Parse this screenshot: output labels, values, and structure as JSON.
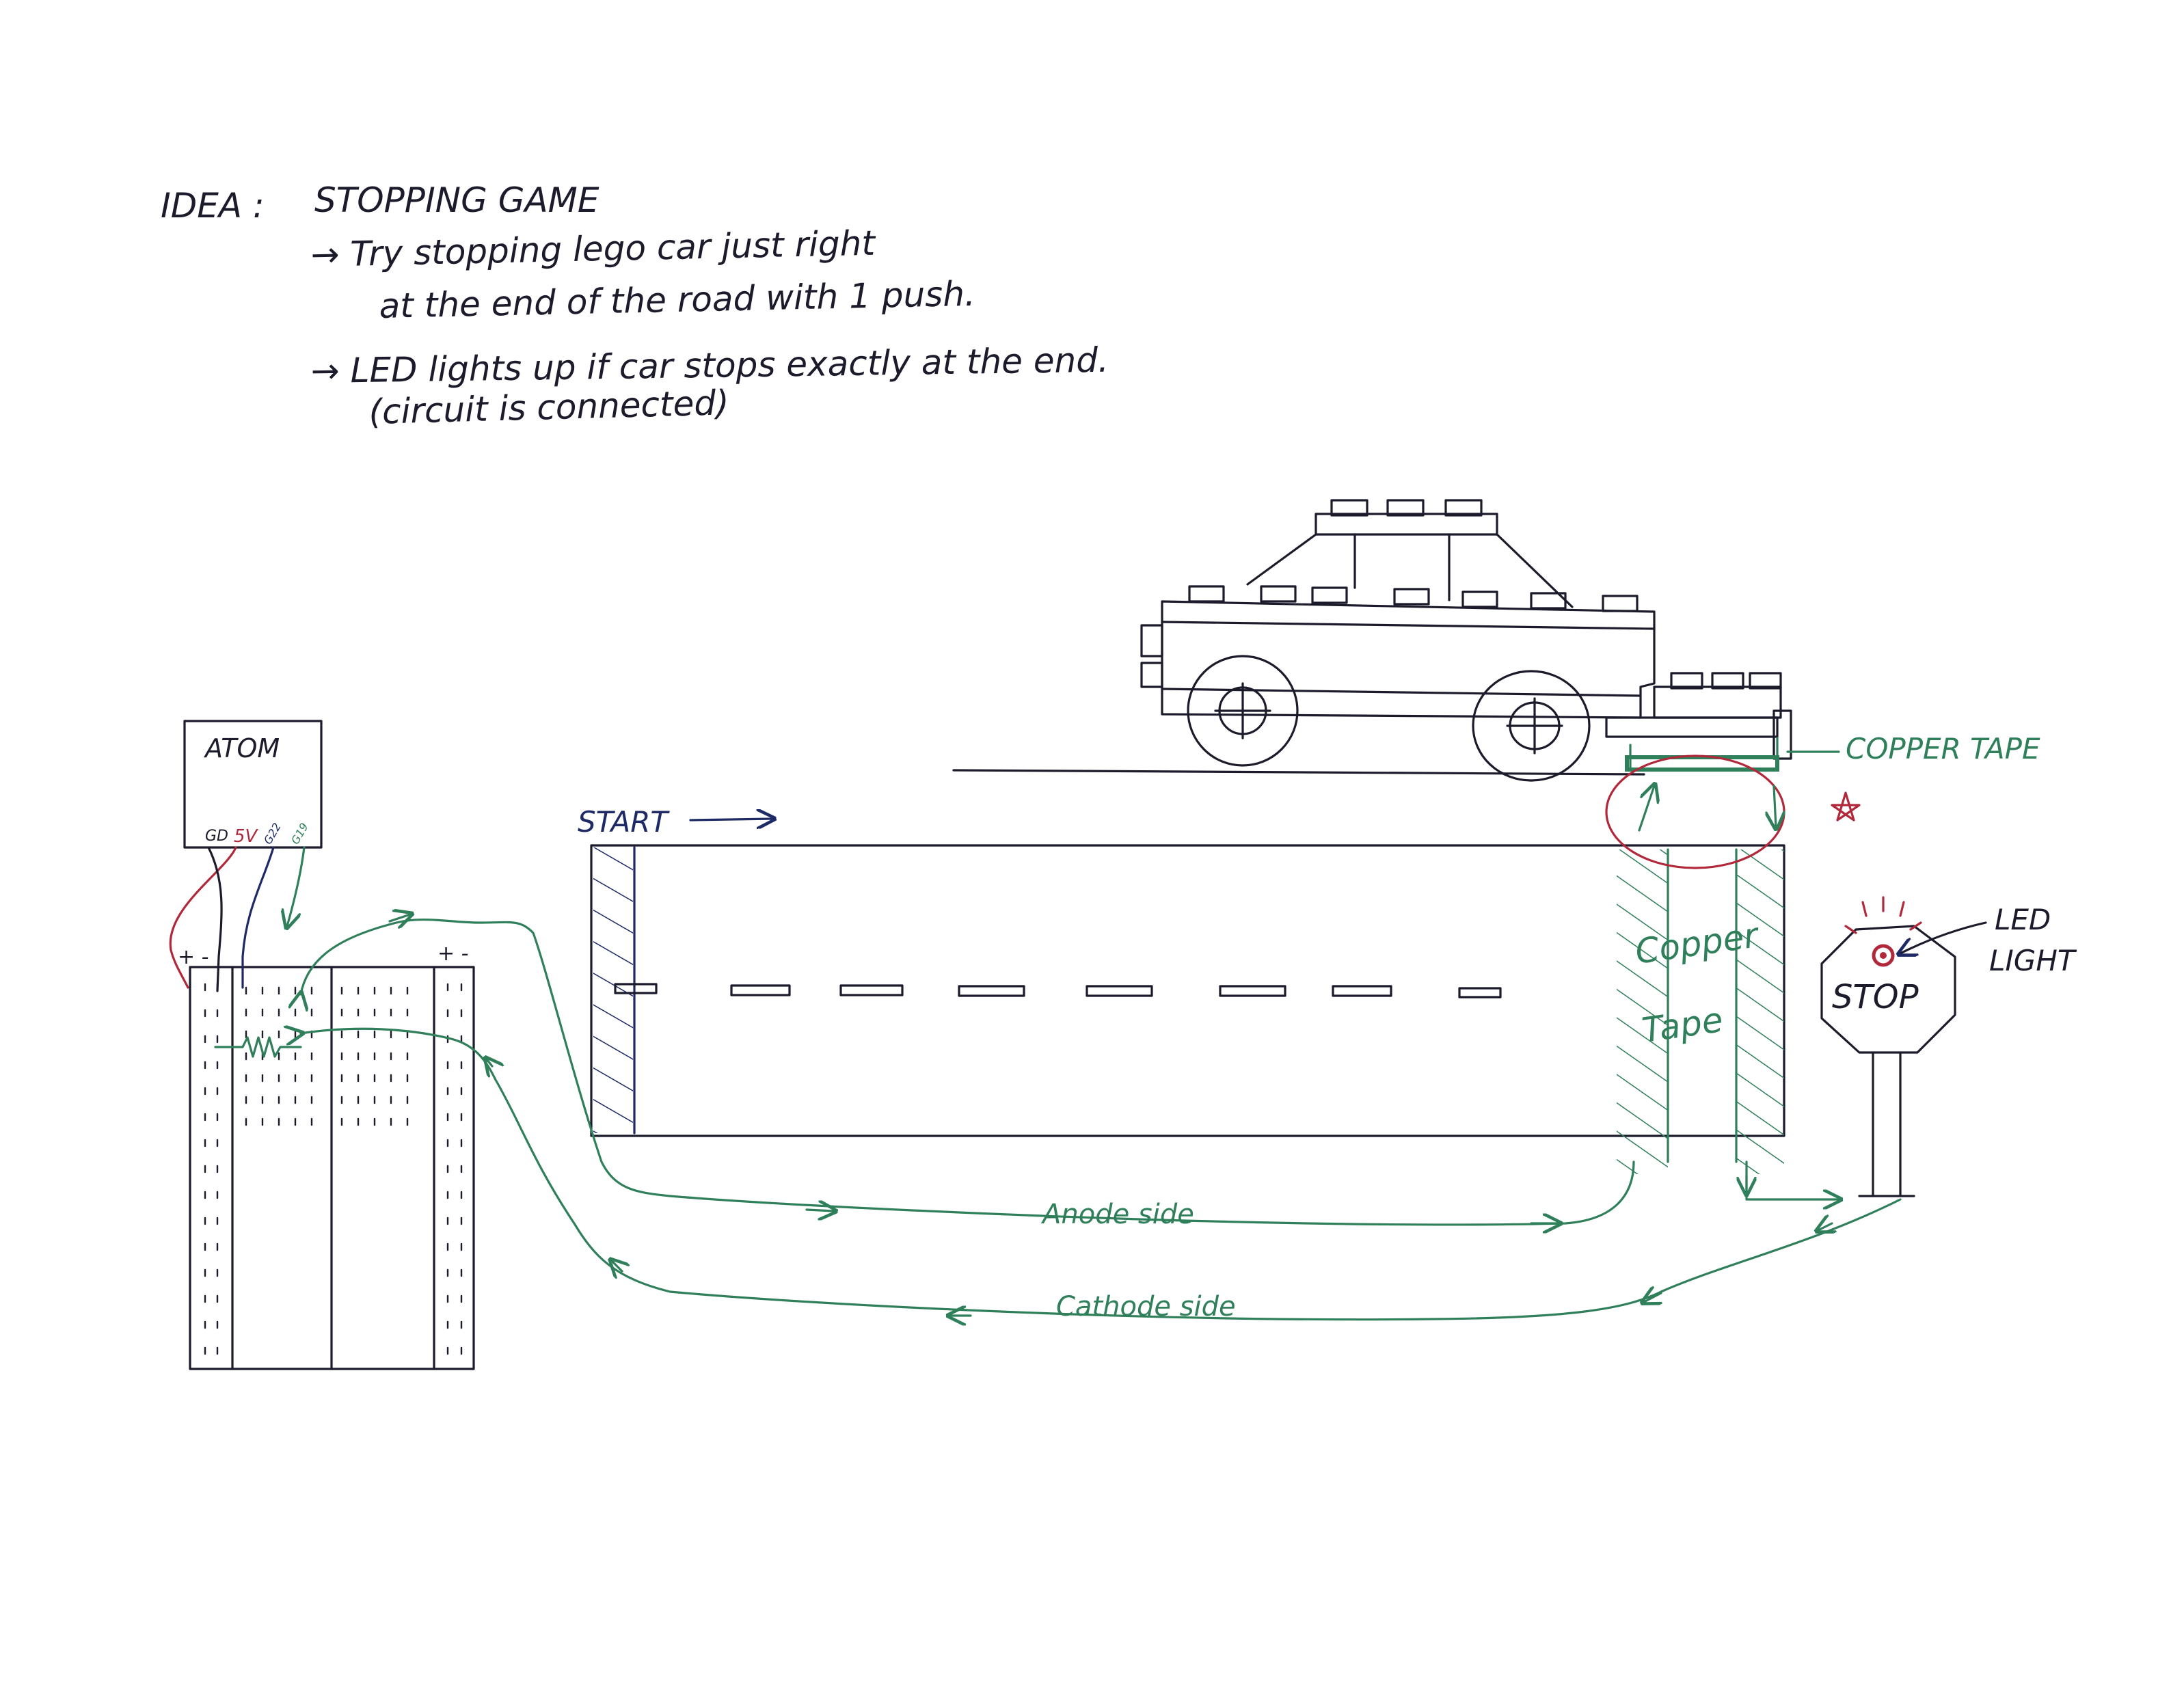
{
  "notes": {
    "idea": "IDEA :",
    "title": "STOPPING GAME",
    "bullet1_line1": "→ Try stopping lego car just right",
    "bullet1_line2": "at the end of the road with 1 push.",
    "bullet2_line1": "→ LED lights up if car stops exactly at the end.",
    "bullet2_line2": "(circuit is connected)"
  },
  "atom": {
    "label": "ATOM",
    "pins": [
      "GD",
      "5V",
      "G22",
      "G19"
    ]
  },
  "breadboard": {
    "rail_left": "+ -",
    "rail_right": "+ -"
  },
  "road": {
    "start_label": "START",
    "copper_label_line1": "Copper",
    "copper_label_line2": "Tape"
  },
  "car": {
    "copper_tape_label": "COPPER TAPE"
  },
  "sign": {
    "stop": "STOP",
    "led_line1": "LED",
    "led_line2": "LIGHT"
  },
  "wires": {
    "anode": "Anode side",
    "cathode": "Cathode side"
  },
  "colors": {
    "ink": "#1b1b2b",
    "green": "#2f7f5a",
    "red": "#b0283a",
    "navy": "#1e2a66"
  }
}
